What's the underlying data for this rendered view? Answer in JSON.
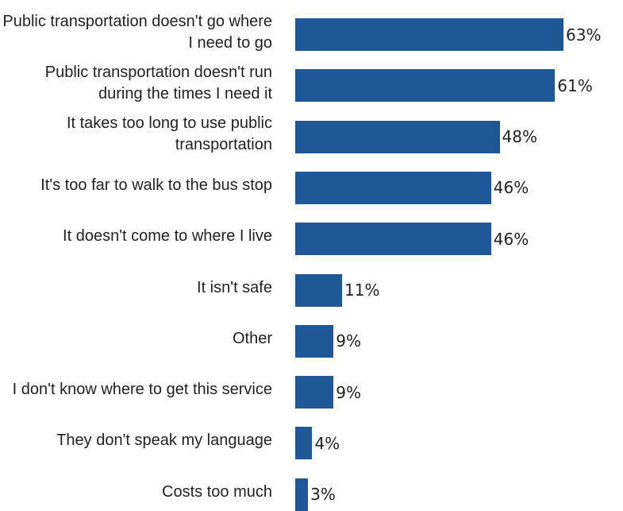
{
  "chart_data": {
    "type": "bar",
    "orientation": "horizontal",
    "categories": [
      "Public transportation doesn't go where I need to go",
      "Public transportation doesn't run during the times I need it",
      "It takes too long to use public transportation",
      "It's too far to walk to the bus stop",
      "It doesn't come to where I live",
      "It isn't safe",
      "Other",
      "I don't know where to get this service",
      "They don't speak my language",
      "Costs too much"
    ],
    "values": [
      63,
      61,
      48,
      46,
      46,
      11,
      9,
      9,
      4,
      3
    ],
    "value_labels": [
      "63%",
      "61%",
      "48%",
      "46%",
      "46%",
      "11%",
      "9%",
      "9%",
      "4%",
      "3%"
    ],
    "unit": "%",
    "xlim": [
      0,
      63
    ],
    "grid": false,
    "legend": "none",
    "bar_color": "#1f5896"
  }
}
